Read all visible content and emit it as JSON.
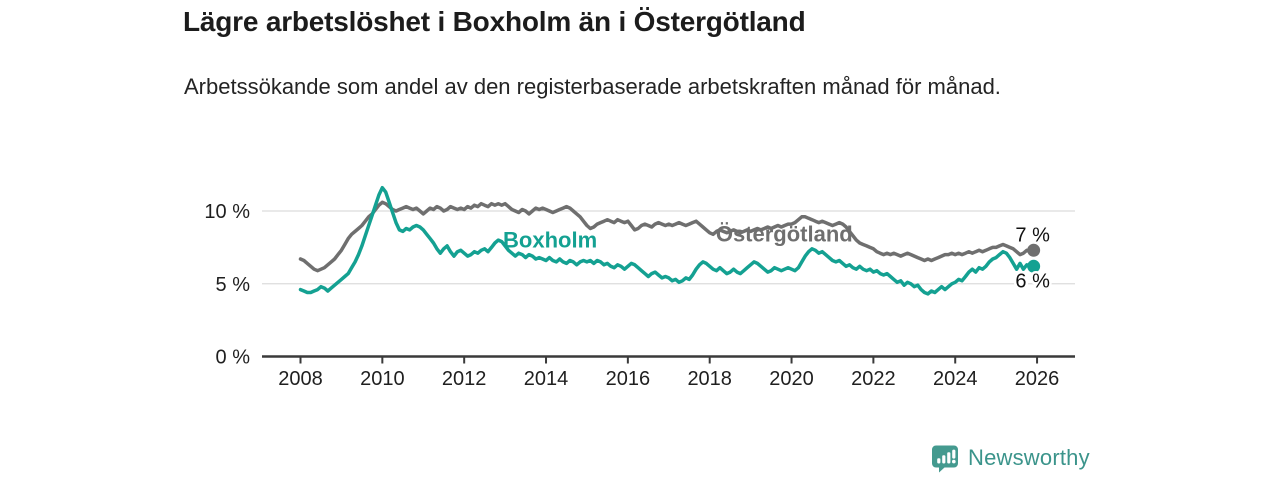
{
  "header": {
    "title": "Lägre arbetslöshet i Boxholm än i Östergötland",
    "subtitle": "Arbetssökande som andel av den registerbaserade arbetskraften månad för månad."
  },
  "footer": {
    "brand": "Newsworthy",
    "logo_icon": "bar-chart-speech-bubble-icon"
  },
  "colors": {
    "boxholm_line": "#14a192",
    "ostergotland_line": "#6f6f6f",
    "grid": "#dcdcdc",
    "axis": "#3a3a3a",
    "tick_text": "#1f1f1f",
    "end_label_text": "#111111",
    "brand_teal": "#3b948b"
  },
  "chart_data": {
    "type": "line",
    "title": "Lägre arbetslöshet i Boxholm än i Östergötland",
    "subtitle": "Arbetssökande som andel av den registerbaserade arbetskraften månad för månad.",
    "xlabel": "",
    "ylabel": "",
    "grid": "horizontal",
    "legend_position": "inline-labels",
    "x_start_year": 2008,
    "x_step_years": 0.0833333,
    "xlim": [
      2007.1,
      2026.95
    ],
    "ylim": [
      0,
      12.5
    ],
    "x_ticks": [
      2008,
      2010,
      2012,
      2014,
      2016,
      2018,
      2020,
      2022,
      2024,
      2026
    ],
    "y_ticks": [
      {
        "value": 0,
        "label": "0 %"
      },
      {
        "value": 5,
        "label": "5 %"
      },
      {
        "value": 10,
        "label": "10 %"
      }
    ],
    "series": [
      {
        "name": "Östergötland",
        "color": "#6f6f6f",
        "name_label": {
          "year": 2018.15,
          "value": 7.9
        },
        "end_label": {
          "text": "7 %",
          "dx": -1,
          "dy": -9
        },
        "values": [
          6.7,
          6.6,
          6.4,
          6.2,
          6.0,
          5.9,
          6.0,
          6.1,
          6.3,
          6.5,
          6.7,
          7.0,
          7.3,
          7.7,
          8.1,
          8.4,
          8.6,
          8.8,
          9.0,
          9.3,
          9.6,
          9.8,
          10.1,
          10.4,
          10.6,
          10.5,
          10.3,
          10.1,
          10.0,
          10.1,
          10.2,
          10.3,
          10.2,
          10.1,
          10.2,
          10.0,
          9.8,
          10.0,
          10.2,
          10.1,
          10.3,
          10.2,
          10.0,
          10.1,
          10.3,
          10.2,
          10.1,
          10.2,
          10.1,
          10.3,
          10.2,
          10.4,
          10.3,
          10.5,
          10.4,
          10.3,
          10.5,
          10.4,
          10.5,
          10.4,
          10.5,
          10.3,
          10.1,
          10.0,
          9.9,
          10.1,
          10.0,
          9.8,
          10.0,
          10.2,
          10.1,
          10.2,
          10.1,
          10.0,
          9.9,
          10.0,
          10.1,
          10.2,
          10.3,
          10.2,
          10.0,
          9.8,
          9.6,
          9.3,
          9.0,
          8.8,
          8.9,
          9.1,
          9.2,
          9.3,
          9.4,
          9.3,
          9.2,
          9.4,
          9.3,
          9.2,
          9.3,
          9.0,
          8.7,
          8.8,
          9.0,
          9.1,
          9.0,
          8.9,
          9.1,
          9.2,
          9.1,
          9.0,
          9.1,
          9.0,
          9.1,
          9.2,
          9.1,
          9.0,
          9.1,
          9.2,
          9.3,
          9.1,
          8.9,
          8.7,
          8.5,
          8.4,
          8.6,
          8.7,
          8.6,
          8.5,
          8.6,
          8.7,
          8.6,
          8.5,
          8.6,
          8.7,
          8.6,
          8.7,
          8.8,
          8.7,
          8.8,
          8.9,
          8.8,
          8.9,
          9.0,
          8.9,
          9.0,
          9.1,
          9.1,
          9.2,
          9.4,
          9.6,
          9.6,
          9.5,
          9.4,
          9.3,
          9.2,
          9.3,
          9.2,
          9.1,
          9.0,
          9.1,
          9.2,
          9.1,
          8.9,
          8.6,
          8.3,
          8.0,
          7.8,
          7.7,
          7.6,
          7.5,
          7.4,
          7.2,
          7.1,
          7.0,
          7.1,
          7.0,
          7.1,
          7.0,
          6.9,
          7.0,
          7.1,
          7.0,
          6.9,
          6.8,
          6.7,
          6.6,
          6.7,
          6.6,
          6.7,
          6.8,
          6.9,
          7.0,
          7.0,
          7.1,
          7.0,
          7.1,
          7.0,
          7.1,
          7.2,
          7.1,
          7.2,
          7.3,
          7.2,
          7.3,
          7.4,
          7.5,
          7.5,
          7.6,
          7.7,
          7.6,
          7.5,
          7.4,
          7.2,
          7.0,
          7.1,
          7.3,
          7.2,
          7.3
        ]
      },
      {
        "name": "Boxholm",
        "color": "#14a192",
        "name_label": {
          "year": 2012.95,
          "value": 7.5
        },
        "end_label": {
          "text": "6 %",
          "dx": -1,
          "dy": 21
        },
        "values": [
          4.6,
          4.5,
          4.4,
          4.4,
          4.5,
          4.6,
          4.8,
          4.7,
          4.5,
          4.7,
          4.9,
          5.1,
          5.3,
          5.5,
          5.7,
          6.1,
          6.5,
          7.0,
          7.6,
          8.3,
          9.0,
          9.7,
          10.4,
          11.1,
          11.6,
          11.3,
          10.6,
          9.9,
          9.2,
          8.7,
          8.6,
          8.8,
          8.7,
          8.9,
          9.0,
          8.9,
          8.7,
          8.4,
          8.1,
          7.8,
          7.4,
          7.1,
          7.4,
          7.6,
          7.2,
          6.9,
          7.2,
          7.3,
          7.1,
          6.9,
          7.0,
          7.2,
          7.1,
          7.3,
          7.4,
          7.2,
          7.5,
          7.8,
          8.0,
          7.9,
          7.6,
          7.3,
          7.1,
          6.9,
          7.1,
          7.0,
          6.8,
          7.0,
          6.9,
          6.7,
          6.8,
          6.7,
          6.6,
          6.8,
          6.6,
          6.5,
          6.7,
          6.5,
          6.4,
          6.6,
          6.5,
          6.3,
          6.5,
          6.6,
          6.5,
          6.6,
          6.4,
          6.6,
          6.5,
          6.3,
          6.4,
          6.2,
          6.1,
          6.3,
          6.2,
          6.0,
          6.2,
          6.4,
          6.3,
          6.1,
          5.9,
          5.7,
          5.5,
          5.7,
          5.8,
          5.6,
          5.4,
          5.5,
          5.4,
          5.2,
          5.3,
          5.1,
          5.2,
          5.4,
          5.3,
          5.6,
          6.0,
          6.3,
          6.5,
          6.4,
          6.2,
          6.0,
          5.9,
          6.1,
          5.9,
          5.7,
          5.8,
          6.0,
          5.8,
          5.7,
          5.9,
          6.1,
          6.3,
          6.5,
          6.4,
          6.2,
          6.0,
          5.8,
          5.9,
          6.1,
          6.0,
          5.9,
          6.0,
          6.1,
          6.0,
          5.9,
          6.1,
          6.5,
          6.9,
          7.2,
          7.4,
          7.3,
          7.1,
          7.2,
          7.0,
          6.8,
          6.6,
          6.5,
          6.6,
          6.4,
          6.2,
          6.3,
          6.1,
          6.0,
          6.2,
          6.0,
          5.9,
          6.0,
          5.8,
          5.9,
          5.7,
          5.6,
          5.7,
          5.5,
          5.3,
          5.1,
          5.2,
          4.9,
          5.1,
          5.0,
          4.8,
          4.9,
          4.6,
          4.4,
          4.3,
          4.5,
          4.4,
          4.6,
          4.8,
          4.6,
          4.8,
          5.0,
          5.1,
          5.3,
          5.2,
          5.5,
          5.8,
          6.0,
          5.8,
          6.1,
          6.0,
          6.2,
          6.5,
          6.7,
          6.8,
          7.0,
          7.2,
          7.1,
          6.8,
          6.4,
          6.0,
          6.4,
          6.0,
          6.3,
          6.1,
          6.2
        ]
      }
    ]
  }
}
